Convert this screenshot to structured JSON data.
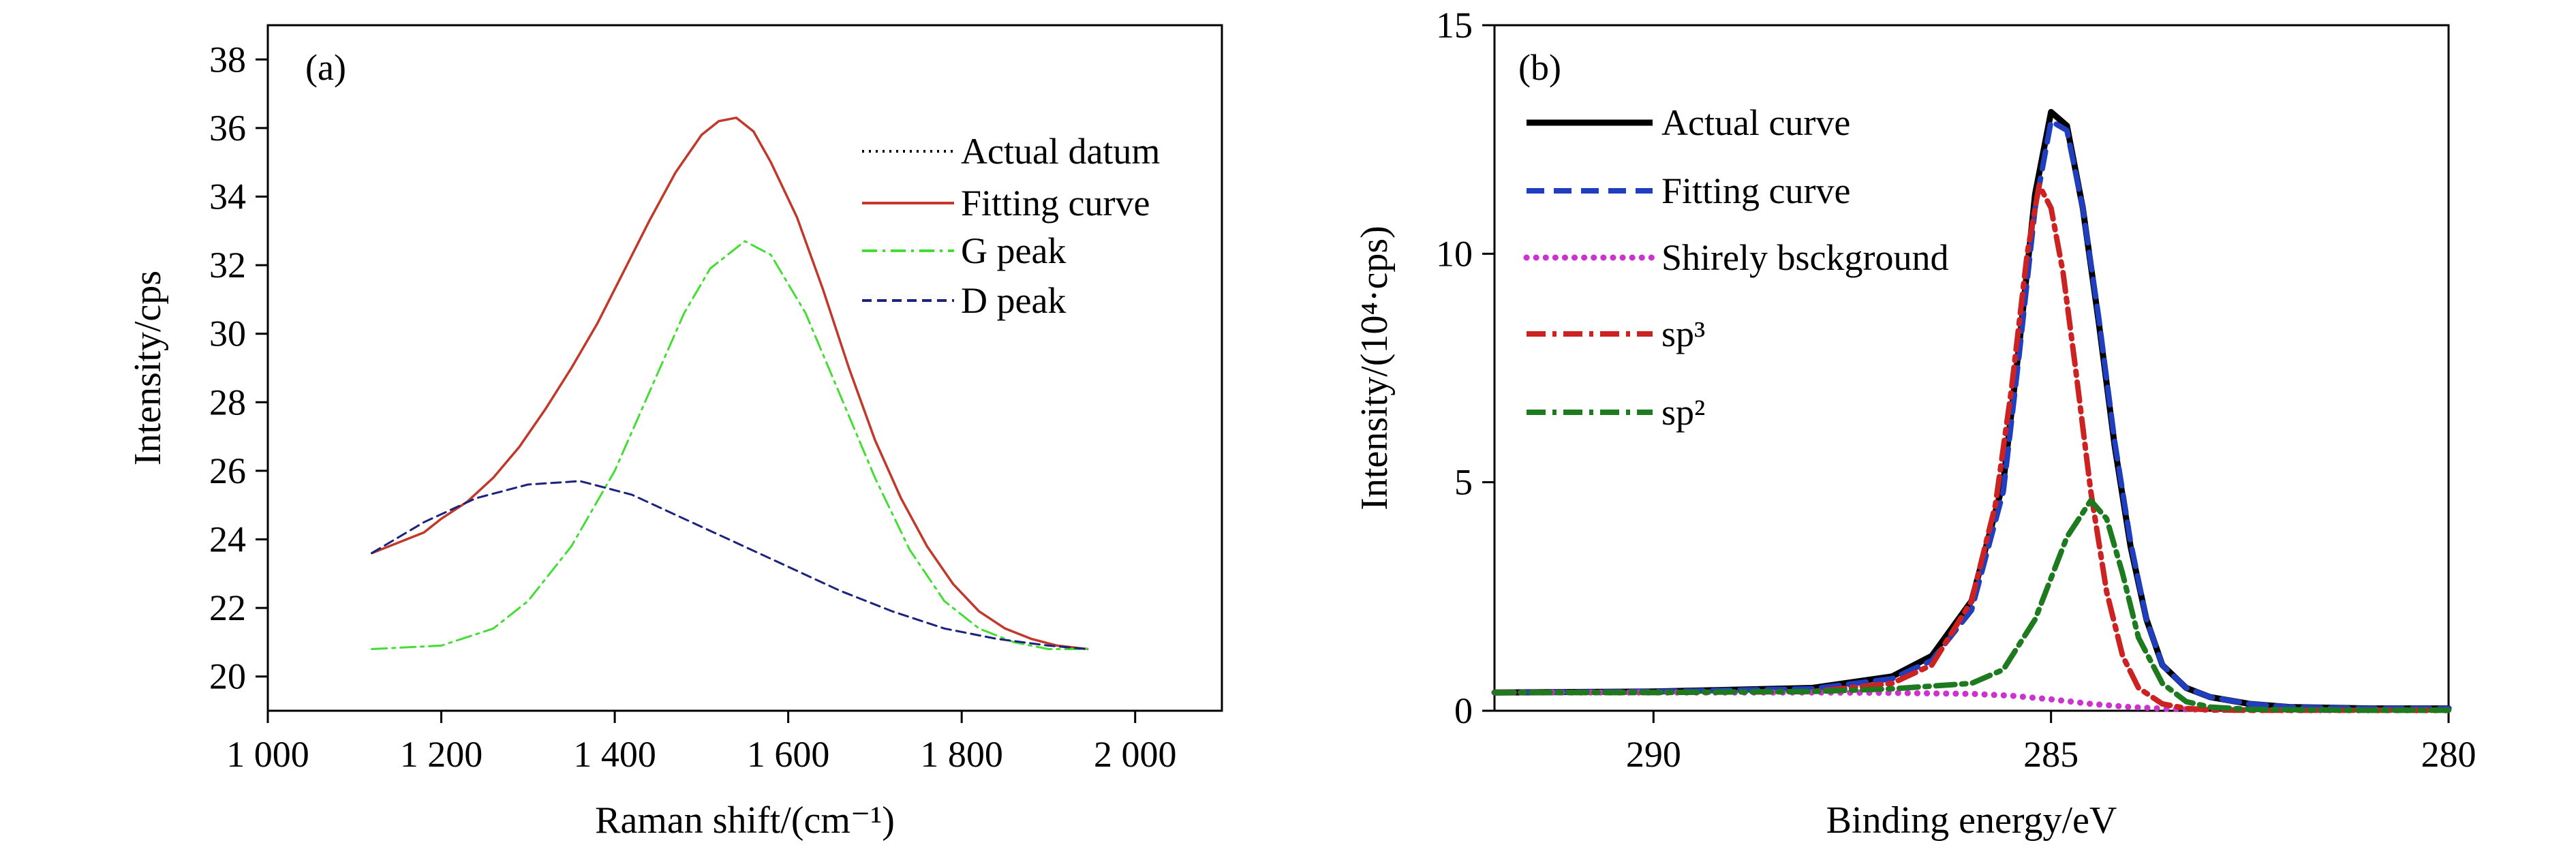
{
  "chart_data": [
    {
      "panel_label": "(a)",
      "type": "line",
      "xlabel": "Raman shift/(cm⁻¹)",
      "ylabel": "Intensity/cps",
      "xlim": [
        1000,
        2100
      ],
      "ylim": [
        19,
        39
      ],
      "x_ticks": [
        1000,
        1200,
        1400,
        1600,
        1800,
        2000
      ],
      "x_tick_labels": [
        "1 000",
        "1 200",
        "1 400",
        "1 600",
        "1 800",
        "2 000"
      ],
      "y_ticks": [
        20,
        22,
        24,
        26,
        28,
        30,
        32,
        34,
        36,
        38
      ],
      "y_tick_labels": [
        "20",
        "22",
        "24",
        "26",
        "28",
        "30",
        "32",
        "34",
        "36",
        "38"
      ],
      "legend_position": "top-right",
      "series": [
        {
          "name": "Actual datum",
          "color": "#000000",
          "style": "dotted",
          "x": [
            1120,
            1150,
            1180,
            1200,
            1230,
            1260,
            1290,
            1320,
            1350,
            1380,
            1410,
            1440,
            1470,
            1500,
            1520,
            1540,
            1560,
            1580,
            1610,
            1640,
            1670,
            1700,
            1730,
            1760,
            1790,
            1820,
            1850,
            1880,
            1910,
            1945
          ],
          "y": [
            23.6,
            23.9,
            24.2,
            24.6,
            25.1,
            25.8,
            26.7,
            27.8,
            29.0,
            30.3,
            31.8,
            33.3,
            34.7,
            35.8,
            36.2,
            36.3,
            35.9,
            35.0,
            33.4,
            31.3,
            29.0,
            26.9,
            25.2,
            23.8,
            22.7,
            21.9,
            21.4,
            21.1,
            20.9,
            20.8
          ]
        },
        {
          "name": "Fitting curve",
          "color": "#c0392b",
          "style": "solid",
          "x": [
            1120,
            1150,
            1180,
            1200,
            1230,
            1260,
            1290,
            1320,
            1350,
            1380,
            1410,
            1440,
            1470,
            1500,
            1520,
            1540,
            1560,
            1580,
            1610,
            1640,
            1670,
            1700,
            1730,
            1760,
            1790,
            1820,
            1850,
            1880,
            1910,
            1945
          ],
          "y": [
            23.6,
            23.9,
            24.2,
            24.6,
            25.1,
            25.8,
            26.7,
            27.8,
            29.0,
            30.3,
            31.8,
            33.3,
            34.7,
            35.8,
            36.2,
            36.3,
            35.9,
            35.0,
            33.4,
            31.3,
            29.0,
            26.9,
            25.2,
            23.8,
            22.7,
            21.9,
            21.4,
            21.1,
            20.9,
            20.8
          ]
        },
        {
          "name": "G peak",
          "color": "#44dd33",
          "style": "dashdot",
          "x": [
            1120,
            1200,
            1260,
            1300,
            1350,
            1400,
            1440,
            1480,
            1510,
            1550,
            1580,
            1620,
            1660,
            1700,
            1740,
            1780,
            1820,
            1860,
            1900,
            1945
          ],
          "y": [
            20.8,
            20.9,
            21.4,
            22.2,
            23.8,
            26.0,
            28.3,
            30.6,
            31.9,
            32.7,
            32.3,
            30.6,
            28.2,
            25.8,
            23.7,
            22.2,
            21.4,
            21.0,
            20.8,
            20.8
          ]
        },
        {
          "name": "D peak",
          "color": "#1a237e",
          "style": "dashed",
          "x": [
            1120,
            1180,
            1240,
            1300,
            1360,
            1420,
            1480,
            1540,
            1600,
            1660,
            1720,
            1780,
            1840,
            1900,
            1945
          ],
          "y": [
            23.6,
            24.5,
            25.2,
            25.6,
            25.7,
            25.3,
            24.6,
            23.9,
            23.2,
            22.5,
            21.9,
            21.4,
            21.1,
            20.9,
            20.8
          ]
        }
      ]
    },
    {
      "panel_label": "(b)",
      "type": "line",
      "xlabel": "Binding energy/eV",
      "ylabel": "Intensity/(10⁴·cps)",
      "xlim": [
        292,
        280
      ],
      "ylim": [
        0,
        15
      ],
      "x_ticks": [
        290,
        285,
        280
      ],
      "x_tick_labels": [
        "290",
        "285",
        "280"
      ],
      "y_ticks": [
        0,
        5,
        10,
        15
      ],
      "y_tick_labels": [
        "0",
        "5",
        "10",
        "15"
      ],
      "legend_position": "top-left",
      "series": [
        {
          "name": "Actual curve",
          "color": "#000000",
          "style": "solid",
          "x": [
            292,
            290,
            288,
            287,
            286.5,
            286,
            285.6,
            285.4,
            285.2,
            285.0,
            284.8,
            284.6,
            284.4,
            284.2,
            284.0,
            283.8,
            283.6,
            283.3,
            283.0,
            282.5,
            282.0,
            281.0,
            280
          ],
          "y": [
            0.4,
            0.42,
            0.5,
            0.75,
            1.2,
            2.4,
            5.0,
            8.0,
            11.3,
            13.1,
            12.8,
            11.0,
            8.5,
            5.8,
            3.6,
            2.0,
            1.0,
            0.5,
            0.3,
            0.15,
            0.08,
            0.05,
            0.05
          ]
        },
        {
          "name": "Fitting curve",
          "color": "#1f3fbf",
          "style": "dashed",
          "x": [
            292,
            290,
            288,
            287,
            286.5,
            286,
            285.6,
            285.4,
            285.2,
            285.0,
            284.8,
            284.6,
            284.4,
            284.2,
            284.0,
            283.8,
            283.6,
            283.3,
            283.0,
            282.5,
            282.0,
            281.0,
            280
          ],
          "y": [
            0.4,
            0.42,
            0.48,
            0.7,
            1.1,
            2.2,
            4.8,
            7.8,
            11.0,
            12.9,
            12.7,
            11.0,
            8.6,
            5.9,
            3.7,
            2.0,
            1.0,
            0.5,
            0.3,
            0.15,
            0.08,
            0.05,
            0.05
          ]
        },
        {
          "name": "Shirely bsckground",
          "color": "#cc33cc",
          "style": "dotted",
          "x": [
            292,
            290,
            288,
            287,
            286,
            285.5,
            285,
            284.5,
            284,
            283.5,
            283,
            282,
            281,
            280
          ],
          "y": [
            0.4,
            0.4,
            0.4,
            0.39,
            0.37,
            0.33,
            0.25,
            0.15,
            0.08,
            0.04,
            0.02,
            0.01,
            0.01,
            0.01
          ]
        },
        {
          "name": "sp³",
          "color": "#cc2222",
          "style": "dashdot",
          "x": [
            292,
            290,
            288,
            287,
            286.5,
            286,
            285.7,
            285.5,
            285.3,
            285.15,
            285.0,
            284.85,
            284.7,
            284.5,
            284.3,
            284.1,
            283.9,
            283.6,
            283.3,
            283.0,
            282.5,
            281.0,
            280
          ],
          "y": [
            0.4,
            0.4,
            0.42,
            0.6,
            1.0,
            2.4,
            4.5,
            7.0,
            10.0,
            11.5,
            11.0,
            9.6,
            7.6,
            4.8,
            2.6,
            1.2,
            0.5,
            0.15,
            0.05,
            0.02,
            0.01,
            0.01,
            0.01
          ]
        },
        {
          "name": "sp²",
          "color": "#1e7a1e",
          "style": "dashdot",
          "x": [
            292,
            290,
            288,
            287,
            286,
            285.6,
            285.2,
            284.8,
            284.5,
            284.3,
            284.1,
            283.9,
            283.6,
            283.3,
            283.0,
            282.5,
            281.0,
            280
          ],
          "y": [
            0.4,
            0.4,
            0.42,
            0.48,
            0.6,
            0.9,
            2.0,
            3.8,
            4.6,
            4.2,
            3.0,
            1.6,
            0.6,
            0.2,
            0.08,
            0.03,
            0.01,
            0.01
          ]
        }
      ]
    }
  ]
}
